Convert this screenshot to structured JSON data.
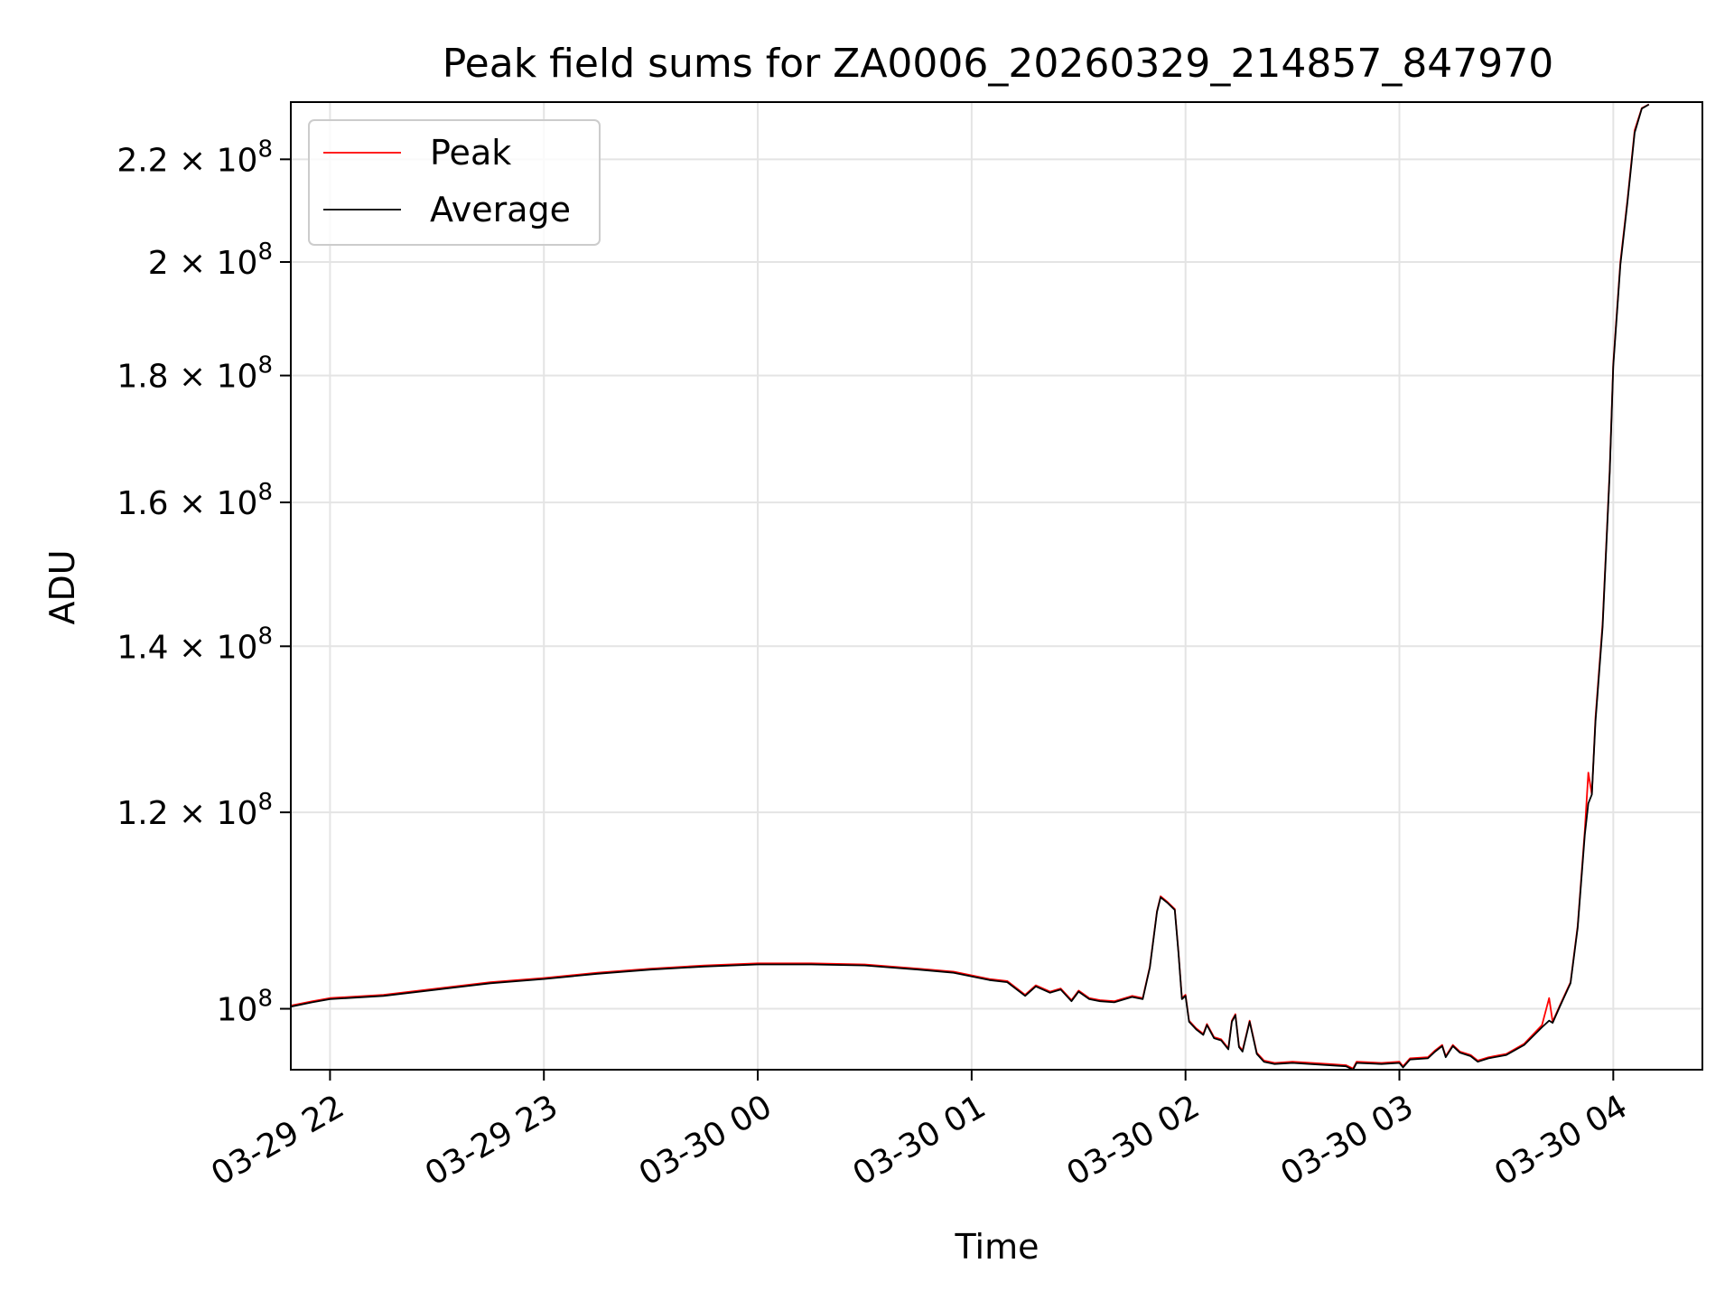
{
  "chart_data": {
    "type": "line",
    "title": "Peak field sums for ZA0006_20260329_214857_847970",
    "xlabel": "Time",
    "ylabel": "ADU",
    "x_unit": "datetime",
    "xlim": [
      "2026-03-29 21:49",
      "2026-03-30 04:25"
    ],
    "ylim": [
      94500000,
      232000000
    ],
    "yscale": "log",
    "grid": true,
    "legend_position": "upper-left",
    "x_ticks": [
      {
        "label": "03-29 22",
        "value": "2026-03-29 22:00"
      },
      {
        "label": "03-29 23",
        "value": "2026-03-29 23:00"
      },
      {
        "label": "03-30 00",
        "value": "2026-03-30 00:00"
      },
      {
        "label": "03-30 01",
        "value": "2026-03-30 01:00"
      },
      {
        "label": "03-30 02",
        "value": "2026-03-30 02:00"
      },
      {
        "label": "03-30 03",
        "value": "2026-03-30 03:00"
      },
      {
        "label": "03-30 04",
        "value": "2026-03-30 04:00"
      }
    ],
    "y_ticks": [
      {
        "mantissa": "10",
        "exponent": "8",
        "value": 100000000
      },
      {
        "mantissa": "1.2 × 10",
        "exponent": "8",
        "value": 120000000
      },
      {
        "mantissa": "1.4 × 10",
        "exponent": "8",
        "value": 140000000
      },
      {
        "mantissa": "1.6 × 10",
        "exponent": "8",
        "value": 160000000
      },
      {
        "mantissa": "1.8 × 10",
        "exponent": "8",
        "value": 180000000
      },
      {
        "mantissa": "2 × 10",
        "exponent": "8",
        "value": 200000000
      },
      {
        "mantissa": "2.2 × 10",
        "exponent": "8",
        "value": 220000000
      }
    ],
    "series": [
      {
        "name": "Peak",
        "color": "#ff0000",
        "points": [
          [
            "2026-03-29 21:49",
            100300000
          ],
          [
            "2026-03-29 21:55",
            100700000
          ],
          [
            "2026-03-29 22:00",
            101000000
          ],
          [
            "2026-03-29 22:15",
            101300000
          ],
          [
            "2026-03-29 22:30",
            101900000
          ],
          [
            "2026-03-29 22:45",
            102500000
          ],
          [
            "2026-03-29 23:00",
            102900000
          ],
          [
            "2026-03-29 23:15",
            103400000
          ],
          [
            "2026-03-29 23:30",
            103800000
          ],
          [
            "2026-03-29 23:45",
            104100000
          ],
          [
            "2026-03-30 00:00",
            104300000
          ],
          [
            "2026-03-30 00:15",
            104300000
          ],
          [
            "2026-03-30 00:30",
            104200000
          ],
          [
            "2026-03-30 00:45",
            103800000
          ],
          [
            "2026-03-30 00:55",
            103500000
          ],
          [
            "2026-03-30 01:05",
            102800000
          ],
          [
            "2026-03-30 01:10",
            102600000
          ],
          [
            "2026-03-30 01:15",
            101300000
          ],
          [
            "2026-03-30 01:18",
            102200000
          ],
          [
            "2026-03-30 01:22",
            101600000
          ],
          [
            "2026-03-30 01:25",
            101900000
          ],
          [
            "2026-03-30 01:28",
            100800000
          ],
          [
            "2026-03-30 01:30",
            101700000
          ],
          [
            "2026-03-30 01:33",
            101000000
          ],
          [
            "2026-03-30 01:36",
            100800000
          ],
          [
            "2026-03-30 01:40",
            100700000
          ],
          [
            "2026-03-30 01:45",
            101200000
          ],
          [
            "2026-03-30 01:48",
            101000000
          ],
          [
            "2026-03-30 01:50",
            104000000
          ],
          [
            "2026-03-30 01:52",
            109500000
          ],
          [
            "2026-03-30 01:53",
            111000000
          ],
          [
            "2026-03-30 01:55",
            110400000
          ],
          [
            "2026-03-30 01:57",
            109700000
          ],
          [
            "2026-03-30 01:58",
            105500000
          ],
          [
            "2026-03-30 01:59",
            101000000
          ],
          [
            "2026-03-30 02:00",
            101300000
          ],
          [
            "2026-03-30 02:01",
            98900000
          ],
          [
            "2026-03-30 02:03",
            98200000
          ],
          [
            "2026-03-30 02:05",
            97700000
          ],
          [
            "2026-03-30 02:06",
            98600000
          ],
          [
            "2026-03-30 02:08",
            97400000
          ],
          [
            "2026-03-30 02:10",
            97200000
          ],
          [
            "2026-03-30 02:12",
            96400000
          ],
          [
            "2026-03-30 02:13",
            98900000
          ],
          [
            "2026-03-30 02:14",
            99500000
          ],
          [
            "2026-03-30 02:15",
            96600000
          ],
          [
            "2026-03-30 02:16",
            96200000
          ],
          [
            "2026-03-30 02:18",
            98900000
          ],
          [
            "2026-03-30 02:20",
            96000000
          ],
          [
            "2026-03-30 02:22",
            95300000
          ],
          [
            "2026-03-30 02:25",
            95100000
          ],
          [
            "2026-03-30 02:30",
            95200000
          ],
          [
            "2026-03-30 02:40",
            95000000
          ],
          [
            "2026-03-30 02:45",
            94900000
          ],
          [
            "2026-03-30 02:47",
            94600000
          ],
          [
            "2026-03-30 02:48",
            95200000
          ],
          [
            "2026-03-30 02:55",
            95100000
          ],
          [
            "2026-03-30 03:00",
            95200000
          ],
          [
            "2026-03-30 03:01",
            94800000
          ],
          [
            "2026-03-30 03:03",
            95500000
          ],
          [
            "2026-03-30 03:08",
            95600000
          ],
          [
            "2026-03-30 03:10",
            96200000
          ],
          [
            "2026-03-30 03:12",
            96700000
          ],
          [
            "2026-03-30 03:13",
            95700000
          ],
          [
            "2026-03-30 03:15",
            96700000
          ],
          [
            "2026-03-30 03:17",
            96100000
          ],
          [
            "2026-03-30 03:20",
            95800000
          ],
          [
            "2026-03-30 03:22",
            95300000
          ],
          [
            "2026-03-30 03:25",
            95600000
          ],
          [
            "2026-03-30 03:30",
            95900000
          ],
          [
            "2026-03-30 03:35",
            96800000
          ],
          [
            "2026-03-30 03:40",
            98500000
          ],
          [
            "2026-03-30 03:42",
            101000000
          ],
          [
            "2026-03-30 03:43",
            98800000
          ],
          [
            "2026-03-30 03:45",
            100300000
          ],
          [
            "2026-03-30 03:48",
            102500000
          ],
          [
            "2026-03-30 03:50",
            108000000
          ],
          [
            "2026-03-30 03:52",
            118000000
          ],
          [
            "2026-03-30 03:53",
            124500000
          ],
          [
            "2026-03-30 03:54",
            122000000
          ],
          [
            "2026-03-30 03:55",
            131000000
          ],
          [
            "2026-03-30 03:57",
            143000000
          ],
          [
            "2026-03-30 03:59",
            165000000
          ],
          [
            "2026-03-30 04:00",
            182000000
          ],
          [
            "2026-03-30 04:02",
            200000000
          ],
          [
            "2026-03-30 04:04",
            212000000
          ],
          [
            "2026-03-30 04:06",
            226000000
          ],
          [
            "2026-03-30 04:08",
            230700000
          ],
          [
            "2026-03-30 04:10",
            231500000
          ]
        ]
      },
      {
        "name": "Average",
        "color": "#000000",
        "points": [
          [
            "2026-03-29 21:49",
            100200000
          ],
          [
            "2026-03-29 21:55",
            100600000
          ],
          [
            "2026-03-29 22:00",
            100900000
          ],
          [
            "2026-03-29 22:15",
            101200000
          ],
          [
            "2026-03-29 22:30",
            101800000
          ],
          [
            "2026-03-29 22:45",
            102400000
          ],
          [
            "2026-03-29 23:00",
            102800000
          ],
          [
            "2026-03-29 23:15",
            103300000
          ],
          [
            "2026-03-29 23:30",
            103700000
          ],
          [
            "2026-03-29 23:45",
            104000000
          ],
          [
            "2026-03-30 00:00",
            104200000
          ],
          [
            "2026-03-30 00:15",
            104200000
          ],
          [
            "2026-03-30 00:30",
            104100000
          ],
          [
            "2026-03-30 00:45",
            103700000
          ],
          [
            "2026-03-30 00:55",
            103400000
          ],
          [
            "2026-03-30 01:05",
            102700000
          ],
          [
            "2026-03-30 01:10",
            102500000
          ],
          [
            "2026-03-30 01:15",
            101200000
          ],
          [
            "2026-03-30 01:18",
            102100000
          ],
          [
            "2026-03-30 01:22",
            101500000
          ],
          [
            "2026-03-30 01:25",
            101800000
          ],
          [
            "2026-03-30 01:28",
            100700000
          ],
          [
            "2026-03-30 01:30",
            101600000
          ],
          [
            "2026-03-30 01:33",
            100900000
          ],
          [
            "2026-03-30 01:36",
            100700000
          ],
          [
            "2026-03-30 01:40",
            100600000
          ],
          [
            "2026-03-30 01:45",
            101100000
          ],
          [
            "2026-03-30 01:48",
            100900000
          ],
          [
            "2026-03-30 01:50",
            103900000
          ],
          [
            "2026-03-30 01:52",
            109400000
          ],
          [
            "2026-03-30 01:53",
            110900000
          ],
          [
            "2026-03-30 01:55",
            110300000
          ],
          [
            "2026-03-30 01:57",
            109600000
          ],
          [
            "2026-03-30 01:58",
            105400000
          ],
          [
            "2026-03-30 01:59",
            100900000
          ],
          [
            "2026-03-30 02:00",
            101200000
          ],
          [
            "2026-03-30 02:01",
            98800000
          ],
          [
            "2026-03-30 02:03",
            98100000
          ],
          [
            "2026-03-30 02:05",
            97600000
          ],
          [
            "2026-03-30 02:06",
            98500000
          ],
          [
            "2026-03-30 02:08",
            97300000
          ],
          [
            "2026-03-30 02:10",
            97100000
          ],
          [
            "2026-03-30 02:12",
            96300000
          ],
          [
            "2026-03-30 02:13",
            98800000
          ],
          [
            "2026-03-30 02:14",
            99400000
          ],
          [
            "2026-03-30 02:15",
            96500000
          ],
          [
            "2026-03-30 02:16",
            96100000
          ],
          [
            "2026-03-30 02:18",
            98800000
          ],
          [
            "2026-03-30 02:20",
            95900000
          ],
          [
            "2026-03-30 02:22",
            95200000
          ],
          [
            "2026-03-30 02:25",
            95000000
          ],
          [
            "2026-03-30 02:30",
            95100000
          ],
          [
            "2026-03-30 02:40",
            94900000
          ],
          [
            "2026-03-30 02:45",
            94800000
          ],
          [
            "2026-03-30 02:47",
            94500000
          ],
          [
            "2026-03-30 02:48",
            95100000
          ],
          [
            "2026-03-30 02:55",
            95000000
          ],
          [
            "2026-03-30 03:00",
            95100000
          ],
          [
            "2026-03-30 03:01",
            94700000
          ],
          [
            "2026-03-30 03:03",
            95400000
          ],
          [
            "2026-03-30 03:08",
            95500000
          ],
          [
            "2026-03-30 03:10",
            96100000
          ],
          [
            "2026-03-30 03:12",
            96600000
          ],
          [
            "2026-03-30 03:13",
            95600000
          ],
          [
            "2026-03-30 03:15",
            96600000
          ],
          [
            "2026-03-30 03:17",
            96000000
          ],
          [
            "2026-03-30 03:20",
            95700000
          ],
          [
            "2026-03-30 03:22",
            95200000
          ],
          [
            "2026-03-30 03:25",
            95500000
          ],
          [
            "2026-03-30 03:30",
            95800000
          ],
          [
            "2026-03-30 03:35",
            96700000
          ],
          [
            "2026-03-30 03:40",
            98300000
          ],
          [
            "2026-03-30 03:42",
            98900000
          ],
          [
            "2026-03-30 03:43",
            98700000
          ],
          [
            "2026-03-30 03:45",
            100200000
          ],
          [
            "2026-03-30 03:48",
            102400000
          ],
          [
            "2026-03-30 03:50",
            107800000
          ],
          [
            "2026-03-30 03:52",
            117500000
          ],
          [
            "2026-03-30 03:53",
            121000000
          ],
          [
            "2026-03-30 03:54",
            122000000
          ],
          [
            "2026-03-30 03:55",
            130500000
          ],
          [
            "2026-03-30 03:57",
            142500000
          ],
          [
            "2026-03-30 03:59",
            164500000
          ],
          [
            "2026-03-30 04:00",
            181500000
          ],
          [
            "2026-03-30 04:02",
            199500000
          ],
          [
            "2026-03-30 04:04",
            211500000
          ],
          [
            "2026-03-30 04:06",
            225500000
          ],
          [
            "2026-03-30 04:08",
            230600000
          ],
          [
            "2026-03-30 04:10",
            231500000
          ]
        ]
      }
    ]
  }
}
